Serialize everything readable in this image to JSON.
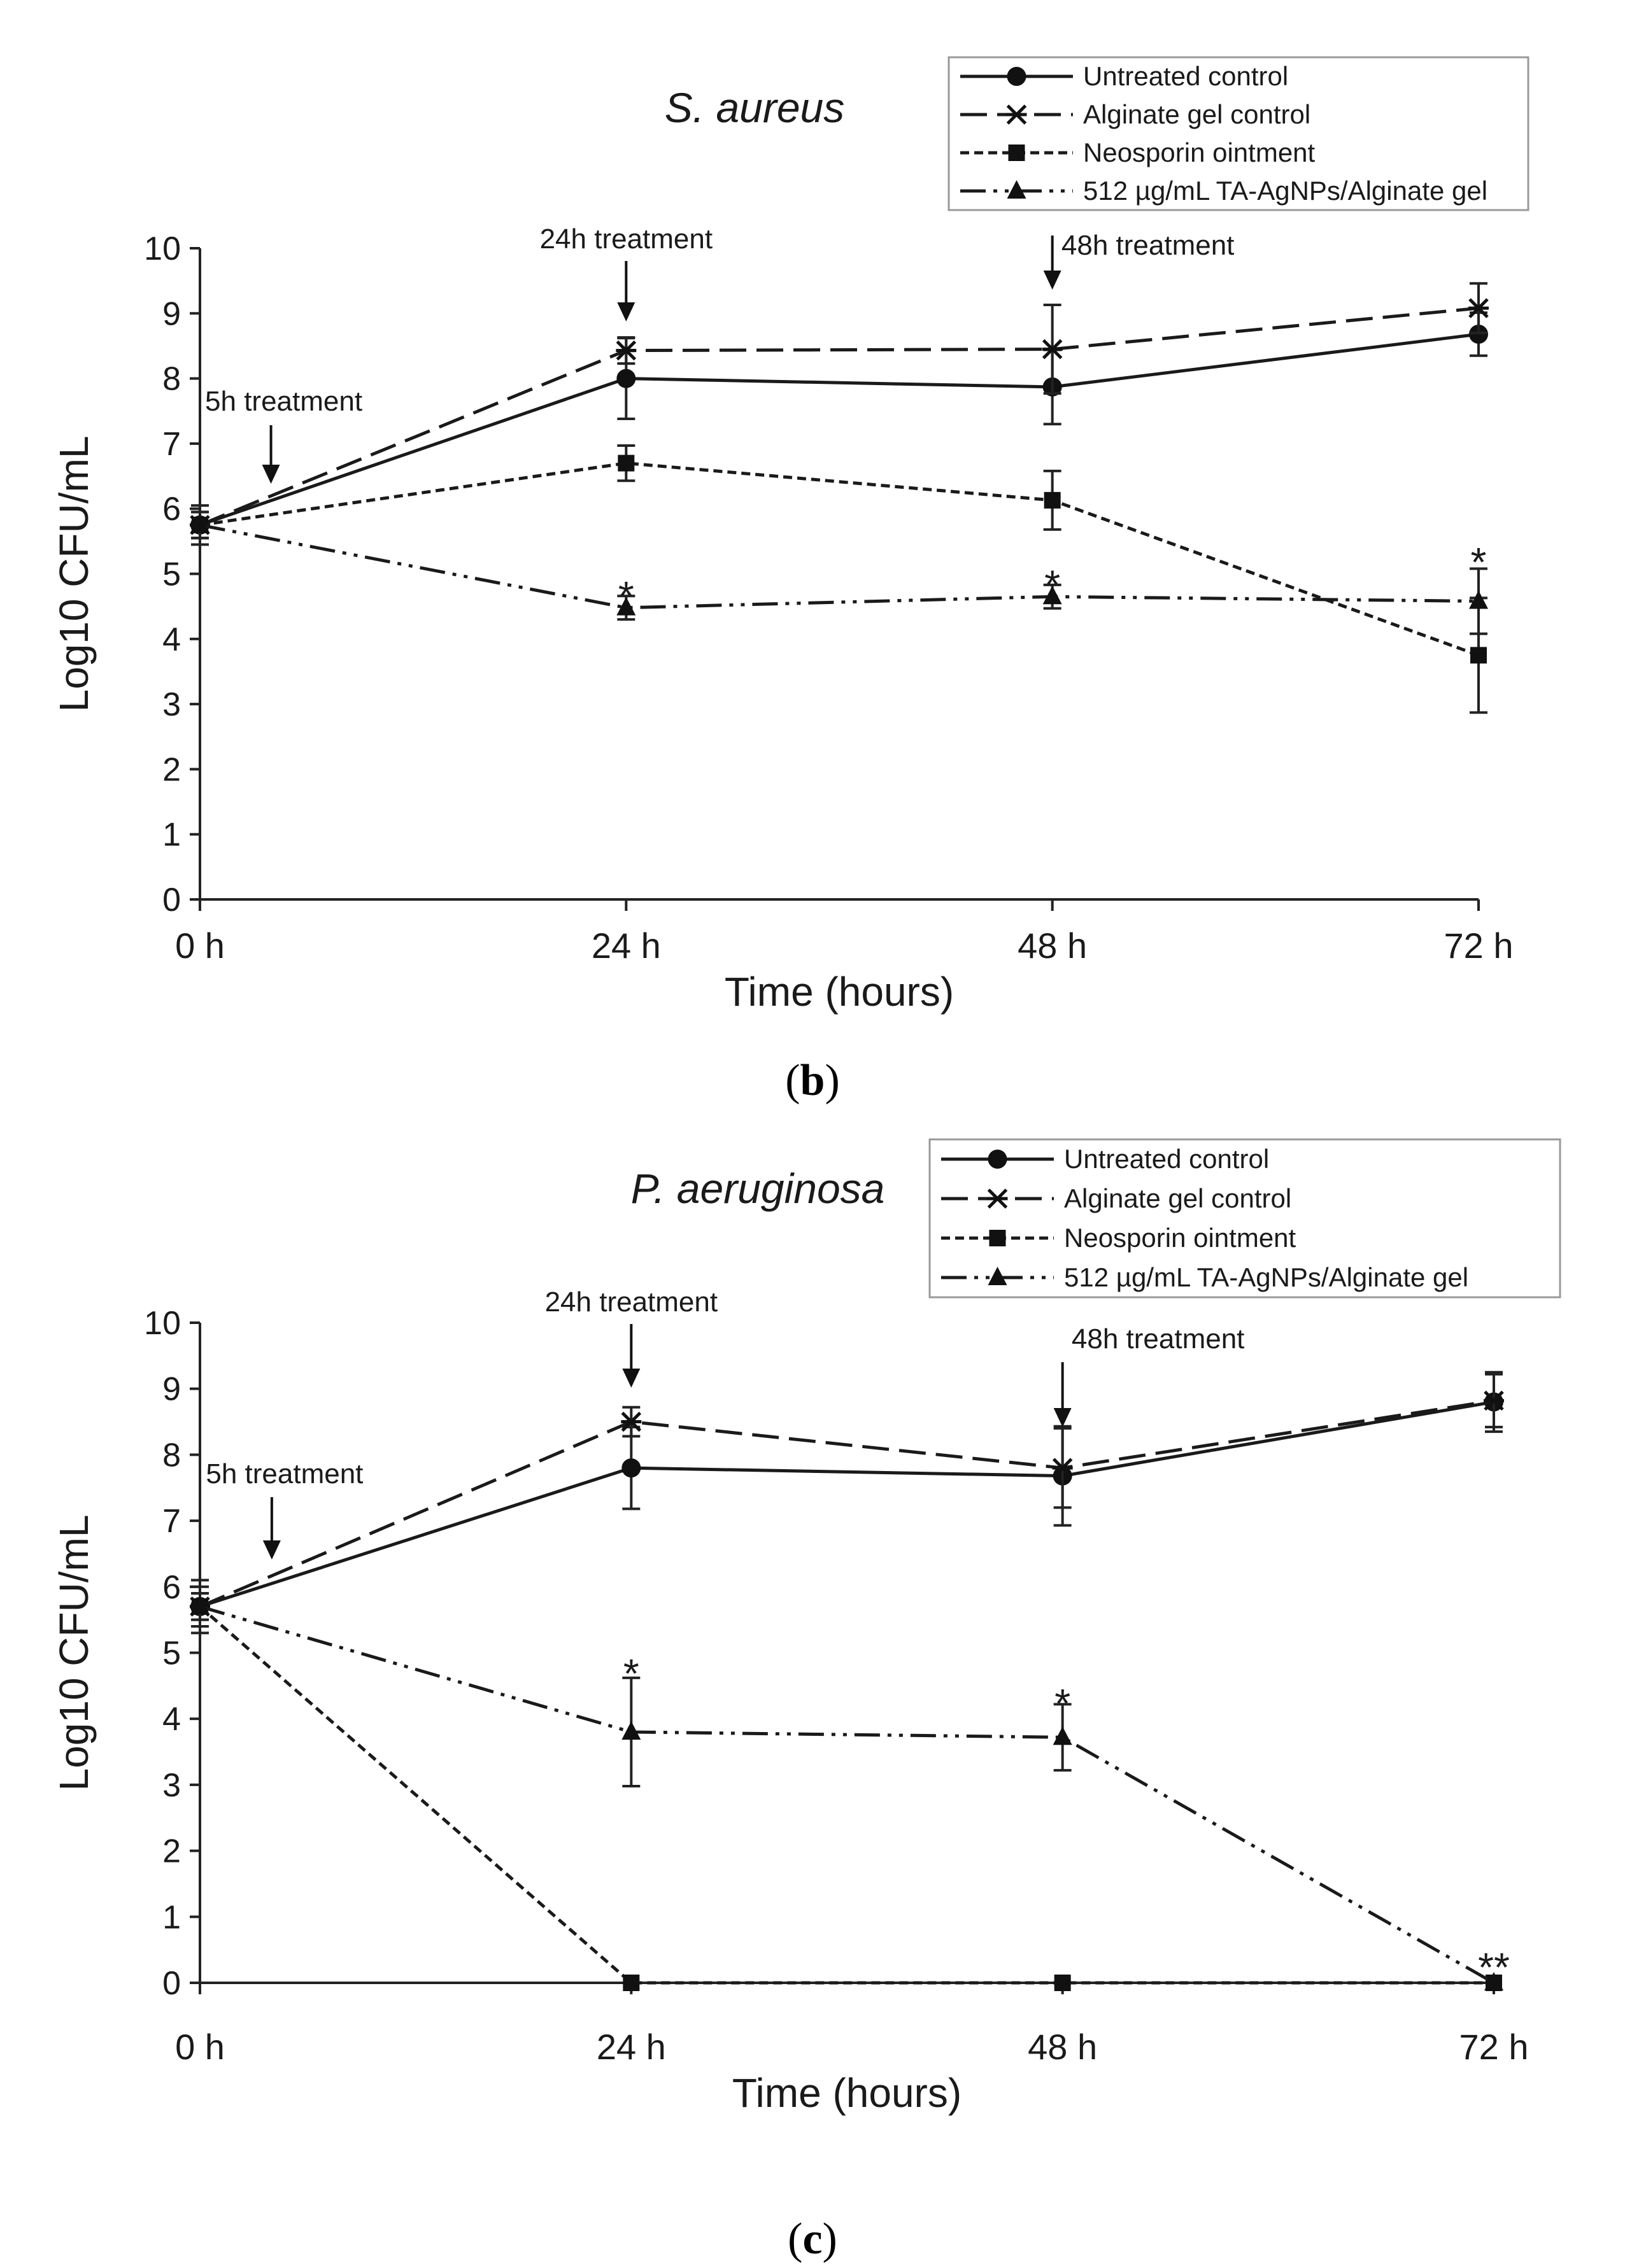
{
  "chart_data": [
    {
      "type": "line",
      "panel_label": "b",
      "title": "S. aureus",
      "xlabel": "Time (hours)",
      "ylabel": "Log10 CFU/mL",
      "categories": [
        "0 h",
        "24 h",
        "48 h",
        "72 h"
      ],
      "x": [
        0,
        24,
        48,
        72
      ],
      "ylim": [
        0,
        10
      ],
      "yticks": [
        "0",
        "1",
        "2",
        "3",
        "4",
        "5",
        "6",
        "7",
        "8",
        "9",
        "10"
      ],
      "legend_position": "top-right",
      "series": [
        {
          "name": "Untreated control",
          "style": "solid",
          "marker": "circle",
          "values": [
            5.75,
            8.0,
            7.87,
            8.68
          ],
          "errors": [
            0.3,
            0.62,
            0.57,
            0.33
          ]
        },
        {
          "name": "Alginate gel control",
          "style": "long-dash",
          "marker": "asterisk",
          "values": [
            5.75,
            8.43,
            8.45,
            9.08
          ],
          "errors": [
            0.2,
            0.2,
            0.68,
            0.38
          ]
        },
        {
          "name": "Neosporin ointment",
          "style": "dotted",
          "marker": "square",
          "values": [
            5.75,
            6.7,
            6.13,
            3.75
          ],
          "errors": [
            0.2,
            0.27,
            0.45,
            0.88
          ]
        },
        {
          "name": "512 µg/mL TA-AgNPs/Alginate gel",
          "style": "dash-dot",
          "marker": "triangle",
          "values": [
            5.75,
            4.48,
            4.65,
            4.58
          ],
          "errors": [
            0.2,
            0.18,
            0.18,
            0.5
          ]
        }
      ],
      "annotations": [
        {
          "text": "5h treatment",
          "x": 4
        },
        {
          "text": "24h treatment",
          "x": 24
        },
        {
          "text": "48h treatment",
          "x": 48
        }
      ],
      "significance": [
        {
          "x": 24,
          "y": 4.78,
          "text": "*"
        },
        {
          "x": 48,
          "y": 4.95,
          "text": "*"
        },
        {
          "x": 72,
          "y": 5.3,
          "text": "*"
        }
      ]
    },
    {
      "type": "line",
      "panel_label": "c",
      "title": "P. aeruginosa",
      "xlabel": "Time (hours)",
      "ylabel": "Log10 CFU/mL",
      "categories": [
        "0 h",
        "24 h",
        "48 h",
        "72 h"
      ],
      "x": [
        0,
        24,
        48,
        72
      ],
      "ylim": [
        0,
        10
      ],
      "yticks": [
        "0",
        "1",
        "2",
        "3",
        "4",
        "5",
        "6",
        "7",
        "8",
        "9",
        "10"
      ],
      "legend_position": "top-right",
      "series": [
        {
          "name": "Untreated control",
          "style": "solid",
          "marker": "circle",
          "values": [
            5.7,
            7.8,
            7.68,
            8.8
          ],
          "errors": [
            0.4,
            0.62,
            0.75,
            0.45
          ]
        },
        {
          "name": "Alginate gel control",
          "style": "long-dash",
          "marker": "asterisk",
          "values": [
            5.7,
            8.5,
            7.8,
            8.82
          ],
          "errors": [
            0.3,
            0.22,
            0.6,
            0.4
          ]
        },
        {
          "name": "Neosporin ointment",
          "style": "dotted",
          "marker": "square",
          "values": [
            5.7,
            0,
            0,
            0
          ],
          "errors": [
            0.2,
            0,
            0,
            0
          ]
        },
        {
          "name": "512 µg/mL TA-AgNPs/Alginate gel",
          "style": "dash-dot",
          "marker": "triangle",
          "values": [
            5.7,
            3.8,
            3.72,
            0
          ],
          "errors": [
            0.2,
            0.82,
            0.5,
            0
          ]
        }
      ],
      "annotations": [
        {
          "text": "5h treatment",
          "x": 4
        },
        {
          "text": "24h treatment",
          "x": 24
        },
        {
          "text": "48h treatment",
          "x": 48
        }
      ],
      "significance": [
        {
          "x": 24,
          "y": 4.8,
          "text": "*"
        },
        {
          "x": 48,
          "y": 4.35,
          "text": "*"
        },
        {
          "x": 72,
          "y": 0.35,
          "text": "**"
        }
      ]
    }
  ]
}
